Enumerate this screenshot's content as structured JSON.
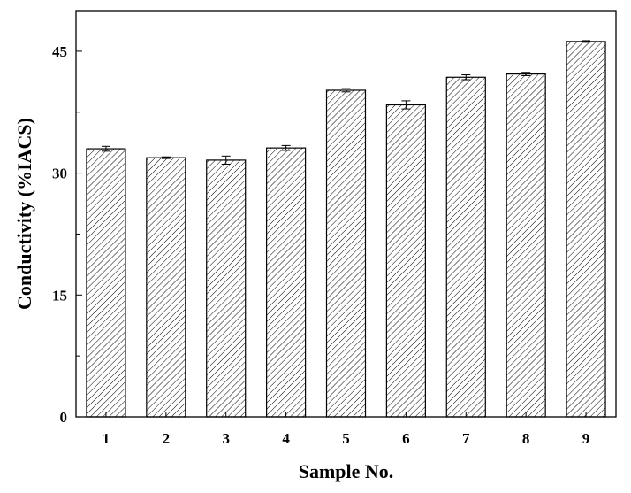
{
  "chart_data": {
    "type": "bar",
    "title": "",
    "xlabel": "Sample No.",
    "ylabel": "Conductivity (%IACS)",
    "categories": [
      "1",
      "2",
      "3",
      "4",
      "5",
      "6",
      "7",
      "8",
      "9"
    ],
    "values": [
      33.0,
      31.9,
      31.6,
      33.1,
      40.2,
      38.4,
      41.8,
      42.2,
      46.2
    ],
    "errors": [
      0.3,
      0.1,
      0.5,
      0.3,
      0.2,
      0.5,
      0.3,
      0.2,
      0.1
    ],
    "ylim": [
      0,
      50
    ],
    "yticks": [
      0,
      15,
      30,
      45
    ],
    "yticklabels": [
      "0",
      "15",
      "30",
      "45"
    ],
    "grid": false,
    "legend": "none",
    "bar_fill": "hatched diagonal",
    "colors": {
      "bar_stroke": "#000000",
      "hatch": "#000000",
      "background": "#ffffff"
    }
  }
}
